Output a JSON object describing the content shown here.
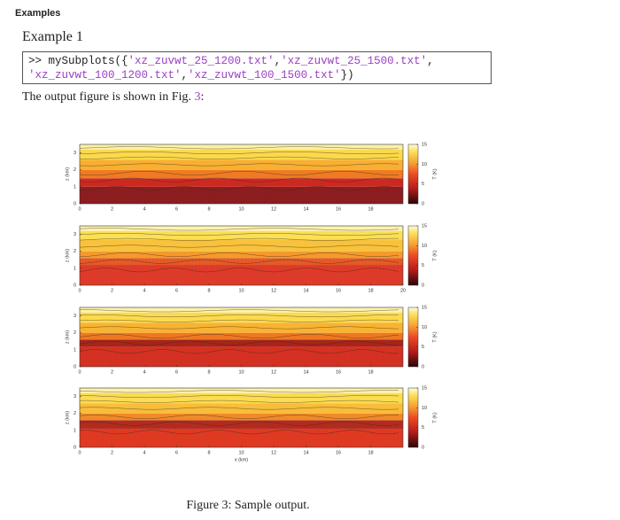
{
  "header": {
    "title": "Examples"
  },
  "section": {
    "title": "Example 1"
  },
  "code": {
    "string_color": "#9a3fc4",
    "lines": [
      [
        ">> mySubplots({",
        "'xz_zuvwt_25_1200.txt'",
        ",",
        "'xz_zuvwt_25_1500.txt'",
        ","
      ],
      [
        "'xz_zuvwt_100_1200.txt'",
        ",",
        "'xz_zuvwt_100_1500.txt'",
        "})"
      ]
    ]
  },
  "paragraph": {
    "text": "The output figure is shown in Fig. ",
    "ref": "3",
    "after": ":"
  },
  "figure": {
    "panels": [
      {
        "xlim": [
          0,
          20
        ],
        "xticks": [
          0,
          2,
          4,
          6,
          8,
          10,
          12,
          14,
          16,
          18
        ],
        "ylim": [
          0,
          3.5
        ],
        "yticks": [
          0,
          1,
          2,
          3
        ],
        "ylabel": "z (km)",
        "clim": [
          0,
          15
        ],
        "cticks": [
          0,
          5,
          10,
          15
        ],
        "clabel": "T (K)"
      },
      {
        "xlim": [
          0,
          20
        ],
        "xticks": [
          0,
          2,
          4,
          6,
          8,
          10,
          12,
          14,
          16,
          18,
          20
        ],
        "ylim": [
          0,
          3.5
        ],
        "yticks": [
          0,
          1,
          2,
          3
        ],
        "ylabel": "z (km)",
        "clim": [
          0,
          15
        ],
        "cticks": [
          0,
          5,
          10,
          15
        ],
        "clabel": "T (K)"
      },
      {
        "xlim": [
          0,
          20
        ],
        "xticks": [
          0,
          2,
          4,
          6,
          8,
          10,
          12,
          14,
          16,
          18
        ],
        "ylim": [
          0,
          3.5
        ],
        "yticks": [
          0,
          1,
          2,
          3
        ],
        "ylabel": "z (km)",
        "clim": [
          0,
          15
        ],
        "cticks": [
          0,
          5,
          10,
          15
        ],
        "clabel": "T (K)"
      },
      {
        "xlim": [
          0,
          20
        ],
        "xticks": [
          0,
          2,
          4,
          6,
          8,
          10,
          12,
          14,
          16,
          18
        ],
        "ylim": [
          0,
          3.5
        ],
        "yticks": [
          0,
          1,
          2,
          3
        ],
        "ylabel": "z (km)",
        "clim": [
          0,
          15
        ],
        "cticks": [
          0,
          5,
          10,
          15
        ],
        "clabel": "T (K)",
        "xlabel": "x (km)"
      }
    ],
    "caption": "Figure 3: Sample output."
  }
}
